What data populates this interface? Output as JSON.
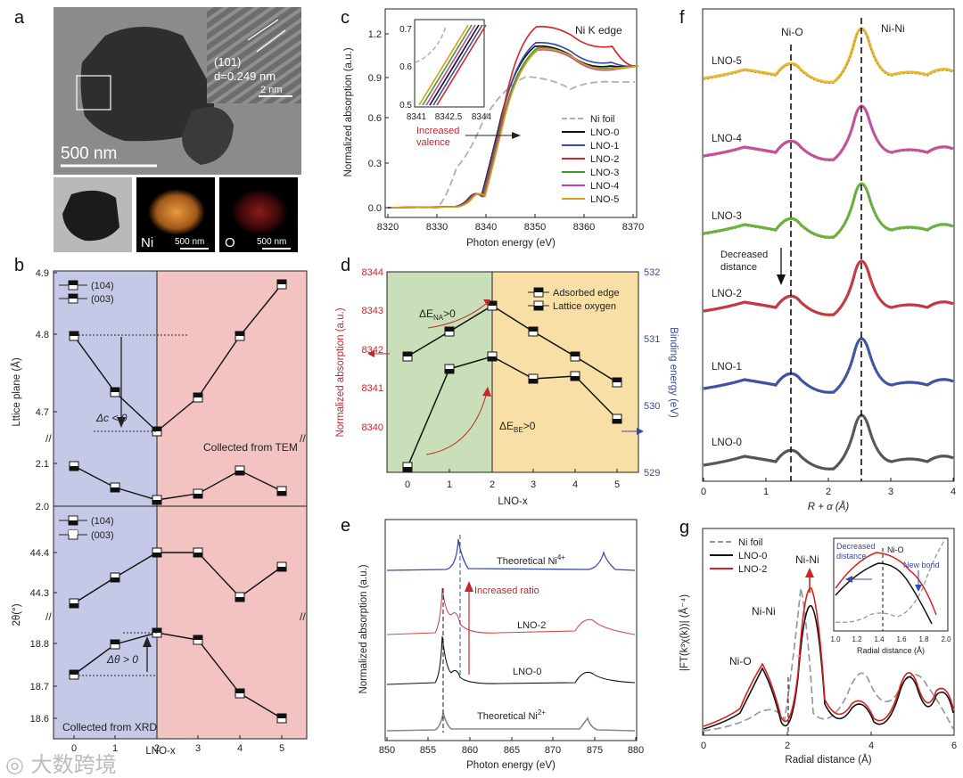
{
  "panel_letters": [
    "a",
    "b",
    "c",
    "d",
    "e",
    "f",
    "g"
  ],
  "a": {
    "scale_main": "500 nm",
    "hr_plane": "(101)",
    "hr_d": "d=0.249 nm",
    "hr_scale": "2 nm",
    "map_ni": "Ni",
    "map_o": "O",
    "map_scale": "500 nm"
  },
  "b": {
    "xlabel": "LNO-x",
    "ylabel_top": "Lttice plane (Å)",
    "ylabel_bottom": "2θ(°)",
    "legend": [
      "(104)",
      "(003)"
    ],
    "ann_dc": "Δc < 0",
    "ann_tem": "Collected from TEM",
    "ann_dtheta": "Δθ > 0",
    "ann_xrd": "Collected from XRD",
    "xticks": [
      "0",
      "1",
      "2",
      "3",
      "4",
      "5"
    ],
    "yticks_top": [
      "4.9",
      "4.8",
      "4.7",
      "2.1",
      "2.0"
    ],
    "yticks_bottom": [
      "44.4",
      "44.3",
      "18.8",
      "18.7",
      "18.6"
    ],
    "colors": {
      "left": "#c5c8e6",
      "right": "#f3c3c1"
    }
  },
  "c": {
    "xlabel": "Photon energy (eV)",
    "ylabel": "Normalized absorption (a.u.)",
    "title": "Ni K edge",
    "annotation": "Increased valence",
    "legend": [
      "Ni foil",
      "LNO-0",
      "LNO-1",
      "LNO-2",
      "LNO-3",
      "LNO-4",
      "LNO-5"
    ],
    "xticks": [
      "8320",
      "8330",
      "8340",
      "8350",
      "8360",
      "8370"
    ],
    "yticks": [
      "0.0",
      "0.3",
      "0.6",
      "0.9",
      "1.2"
    ],
    "inset_xticks": [
      "8341",
      "8342.5",
      "8344"
    ],
    "inset_yticks": [
      "0.7",
      "0.6",
      "0.5"
    ],
    "colors": [
      "#b0b0b0",
      "#111111",
      "#3b4aa8",
      "#d22b2b",
      "#3c9a2f",
      "#c23fb0",
      "#d4a017"
    ]
  },
  "d": {
    "xlabel": "LNO-x",
    "ylabel_left": "Normalized absorption (a.u.)",
    "ylabel_right": "Binding energy (eV)",
    "legend": [
      "Adsorbed edge",
      "Lattice oxygen"
    ],
    "ann_na": "ΔENA>0",
    "ann_be": "ΔEBE>0",
    "xticks": [
      "0",
      "1",
      "2",
      "3",
      "4",
      "5"
    ],
    "yticks_left": [
      "8344",
      "8343",
      "8342",
      "8341",
      "8340"
    ],
    "yticks_right": [
      "532",
      "531",
      "530",
      "529"
    ],
    "colors": {
      "left": "#c9dfb9",
      "right": "#f8dfa6",
      "left_axis": "#c0282d",
      "right_axis": "#3b4a95"
    }
  },
  "e": {
    "xlabel": "Photon energy (eV)",
    "ylabel": "Normalized absorption (a.u.)",
    "labels": [
      "Theoretical Ni4+",
      "LNO-2",
      "LNO-0",
      "Theoretical Ni2+"
    ],
    "annotation": "Increased ratio",
    "xticks": [
      "850",
      "855",
      "860",
      "865",
      "870",
      "875",
      "880"
    ]
  },
  "f": {
    "xlabel": "R + α (Å)",
    "labels": [
      "LNO-5",
      "LNO-4",
      "LNO-3",
      "LNO-2",
      "LNO-1",
      "LNO-0"
    ],
    "ann_nio": "Ni-O",
    "ann_nini": "Ni-Ni",
    "ann_dist": "Decreased distance",
    "xticks": [
      "0",
      "1",
      "2",
      "3",
      "4"
    ],
    "colors": [
      "#e8b92f",
      "#c94f9e",
      "#6bb43c",
      "#cc3440",
      "#3d52a3",
      "#555555"
    ]
  },
  "g": {
    "xlabel": "Radial distance (Å)",
    "ylabel": "|FT(k³χ(k))| (Å⁻⁴)",
    "legend": [
      "Ni foil",
      "LNO-0",
      "LNO-2"
    ],
    "ann_nini": "Ni-Ni",
    "ann_nini2": "Ni-Ni",
    "ann_nio": "Ni-O",
    "inset_nio": "Ni-O",
    "inset_dec": "Decreased distance",
    "inset_new": "New bond",
    "inset_xlabel": "Radial distance (Å)",
    "xticks": [
      "0",
      "2",
      "4",
      "6"
    ],
    "inset_xticks": [
      "1.0",
      "1.2",
      "1.4",
      "1.6",
      "1.8",
      "2.0"
    ],
    "colors": [
      "#999999",
      "#111111",
      "#d82020"
    ]
  },
  "watermark": "大数跨境"
}
